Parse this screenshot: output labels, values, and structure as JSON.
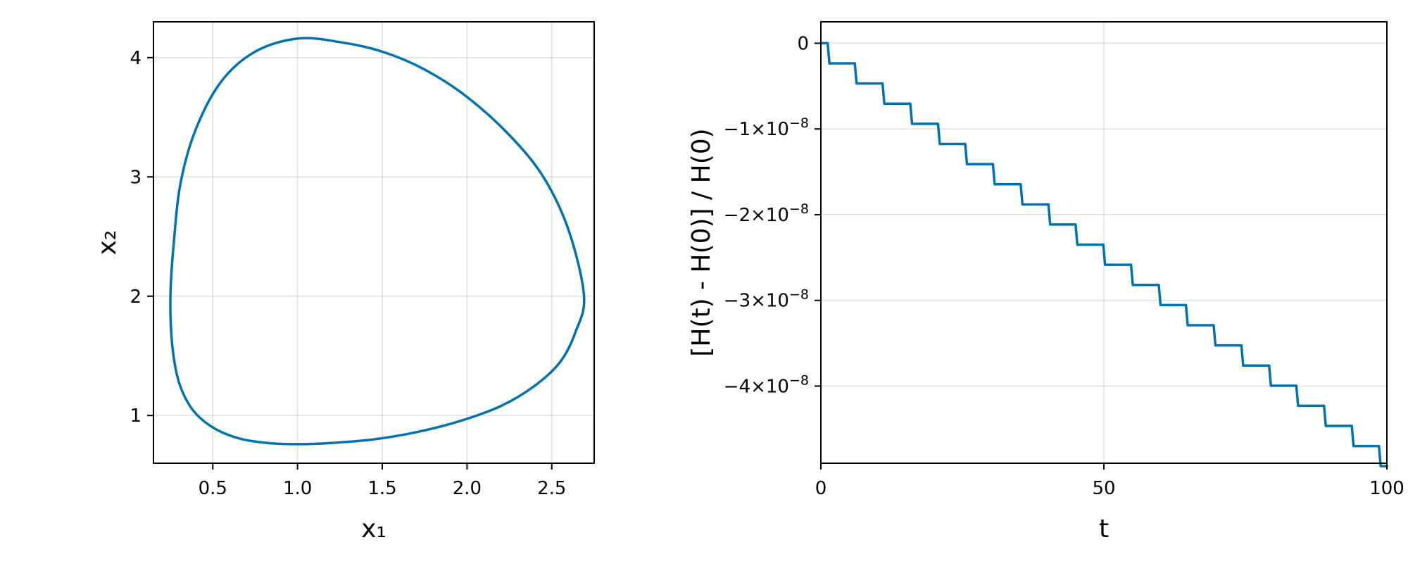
{
  "colors": {
    "series": "#0072b2",
    "frame": "#000000"
  },
  "chart_data": [
    {
      "type": "line",
      "subtype": "phase-portrait",
      "xlabel": "x₁",
      "ylabel": "x₂",
      "xlim": [
        0.15,
        2.75
      ],
      "ylim": [
        0.6,
        4.3
      ],
      "grid": true,
      "xticks": [
        0.5,
        1.0,
        1.5,
        2.0,
        2.5
      ],
      "xtick_labels": [
        "0.5",
        "1.0",
        "1.5",
        "2.0",
        "2.5"
      ],
      "yticks": [
        1,
        2,
        3,
        4
      ],
      "ytick_labels": [
        "1",
        "2",
        "3",
        "4"
      ],
      "series": [
        {
          "x": [
            2.69,
            2.6,
            2.45,
            2.25,
            2.0,
            1.75,
            1.5,
            1.25,
            1.0,
            0.75,
            0.55,
            0.4,
            0.31,
            0.27,
            0.25,
            0.26,
            0.3,
            0.38,
            0.5,
            0.65,
            0.82,
            1.0,
            1.2,
            1.45,
            1.7,
            1.95,
            2.2,
            2.4,
            2.55,
            2.64,
            2.69
          ],
          "y": [
            2.0,
            2.55,
            3.0,
            3.35,
            3.67,
            3.9,
            4.05,
            4.13,
            4.16,
            4.05,
            3.8,
            3.4,
            2.95,
            2.45,
            2.0,
            1.6,
            1.28,
            1.05,
            0.9,
            0.81,
            0.77,
            0.76,
            0.77,
            0.8,
            0.86,
            0.95,
            1.08,
            1.25,
            1.45,
            1.7,
            2.0
          ]
        }
      ]
    },
    {
      "type": "line",
      "subtype": "step",
      "xlabel": "t",
      "ylabel": "[H(t) - H(0)] / H(0)",
      "xlim": [
        0,
        100
      ],
      "ylim": [
        -4.9e-08,
        2.5e-09
      ],
      "grid": true,
      "xticks": [
        0,
        50,
        100
      ],
      "xtick_labels": [
        "0",
        "50",
        "100"
      ],
      "yticks": [
        0,
        -1e-08,
        -2e-08,
        -3e-08,
        -4e-08
      ],
      "ytick_labels": [
        {
          "base": "0",
          "exp": ""
        },
        {
          "base": "−1×10",
          "exp": "−8"
        },
        {
          "base": "−2×10",
          "exp": "−8"
        },
        {
          "base": "−3×10",
          "exp": "−8"
        },
        {
          "base": "−4×10",
          "exp": "−8"
        }
      ],
      "series": [
        {
          "step_times": [
            1.2,
            6.0,
            10.9,
            15.8,
            20.7,
            25.5,
            30.4,
            35.3,
            40.2,
            45.0,
            49.9,
            54.8,
            59.7,
            64.5,
            69.4,
            74.3,
            79.2,
            84.0,
            88.9,
            93.8,
            98.6
          ],
          "levels": [
            0,
            -2.35e-09,
            -4.7e-09,
            -7.05e-09,
            -9.4e-09,
            -1.175e-08,
            -1.41e-08,
            -1.645e-08,
            -1.88e-08,
            -2.115e-08,
            -2.35e-08,
            -2.585e-08,
            -2.82e-08,
            -3.055e-08,
            -3.29e-08,
            -3.525e-08,
            -3.76e-08,
            -3.995e-08,
            -4.23e-08,
            -4.465e-08,
            -4.7e-08,
            -4.935e-08
          ],
          "t_end": 100
        }
      ]
    }
  ]
}
